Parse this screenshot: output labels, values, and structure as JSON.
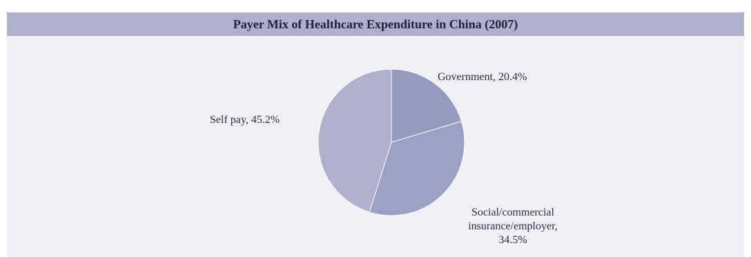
{
  "chart_data": {
    "type": "pie",
    "title": "Payer Mix of Healthcare Expenditure in China (2007)",
    "slices": [
      {
        "label": "Government",
        "value": 20.4,
        "display": [
          "Government, 20.4%"
        ],
        "color": "#959bbe"
      },
      {
        "label": "Social/commercial insurance/employer",
        "value": 34.5,
        "display": [
          "Social/commercial",
          "insurance/employer,",
          "34.5%"
        ],
        "color": "#9ba1c4"
      },
      {
        "label": "Self pay",
        "value": 45.2,
        "display": [
          "Self pay, 45.2%"
        ],
        "color": "#adb1cd"
      }
    ],
    "start_angle": "12 o'clock",
    "direction": "clockwise",
    "colors": {
      "header_bg": "#adb1cd",
      "panel_bg": "#f1f0f6",
      "slice_border": "#ffffff",
      "text": "#2a2e44"
    }
  }
}
